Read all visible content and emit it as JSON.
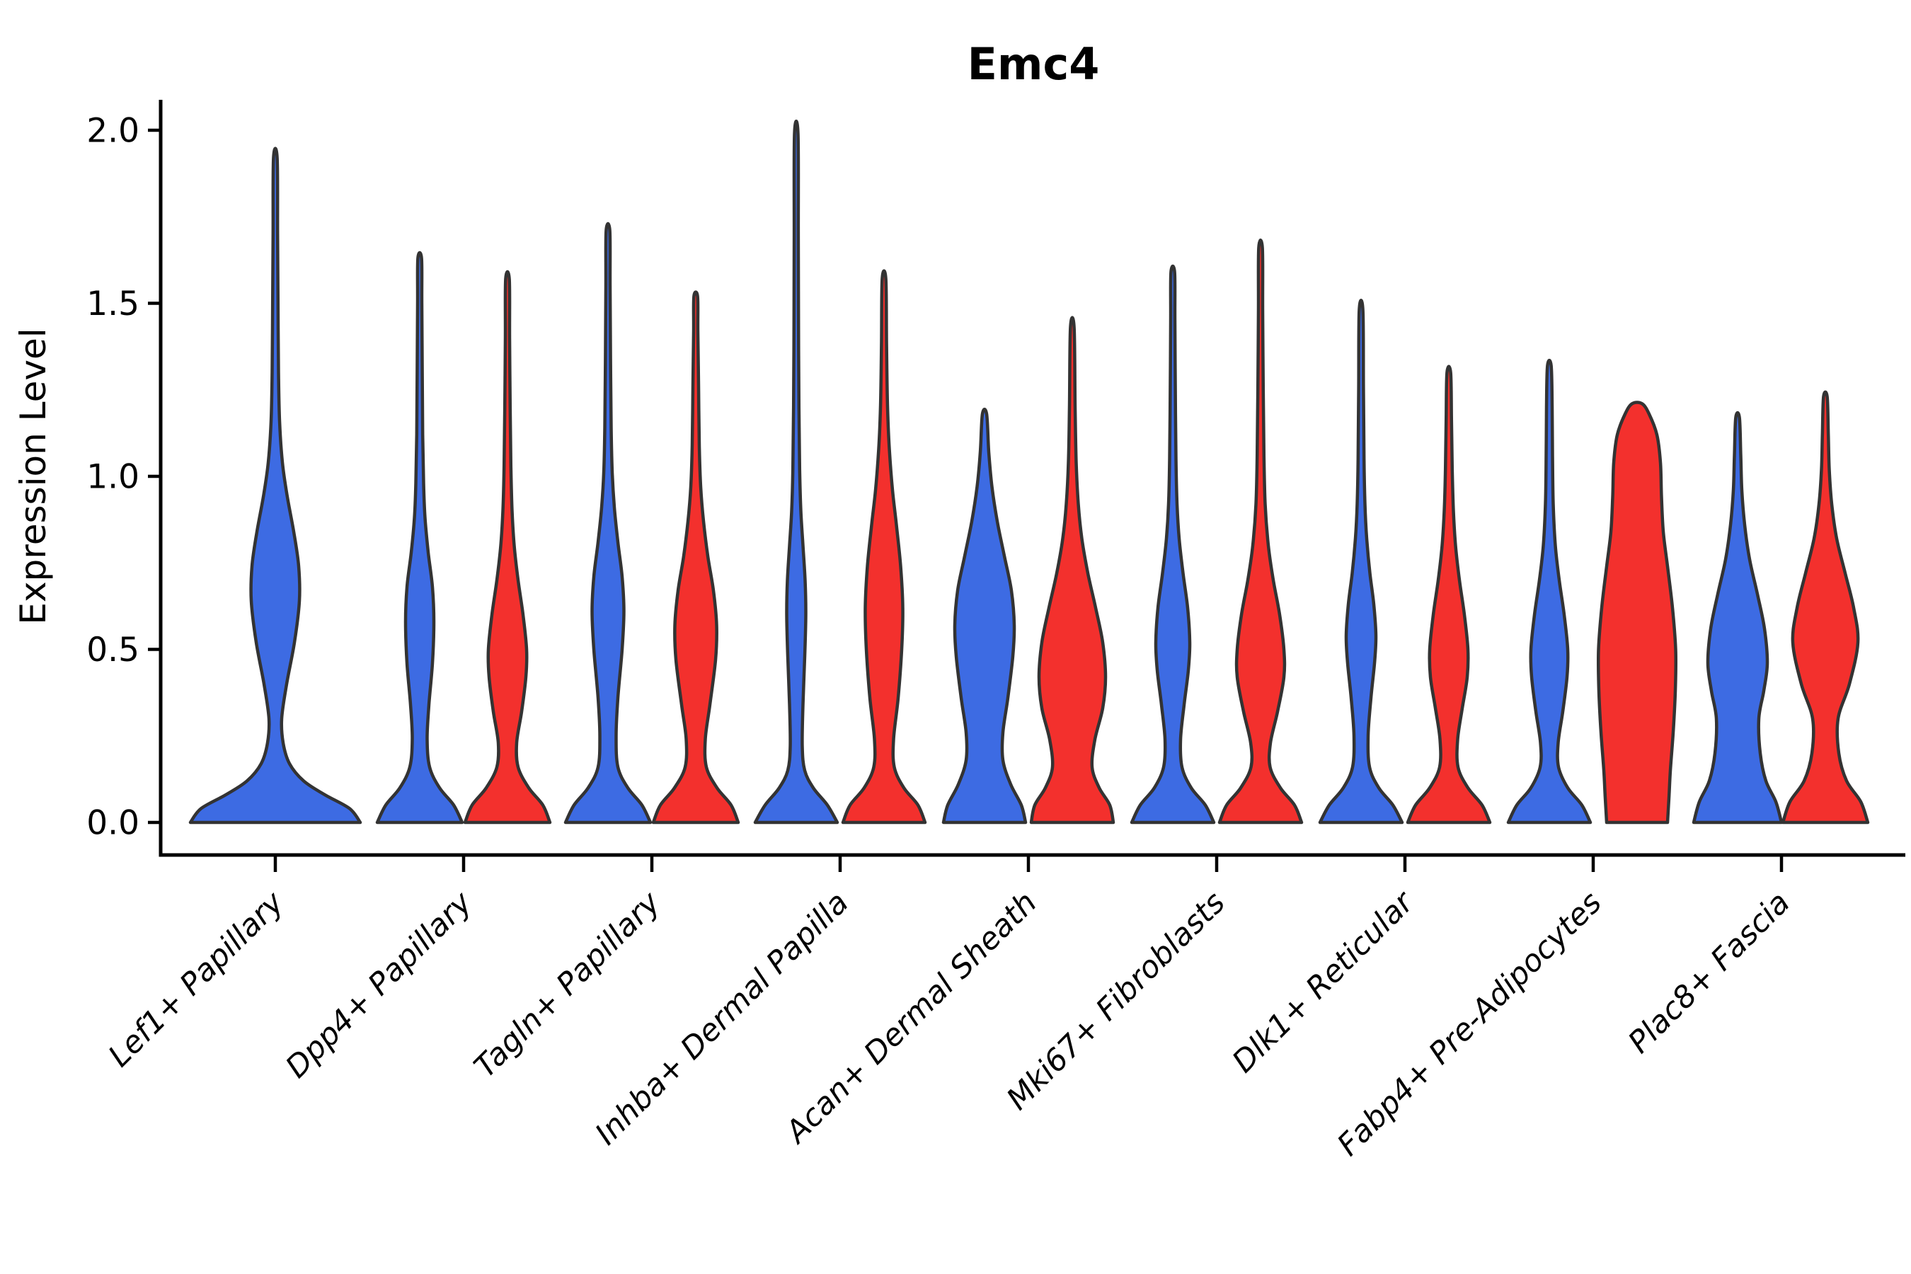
{
  "chart_data": {
    "type": "violin",
    "title": "Emc4",
    "xlabel": "",
    "ylabel": "Expression Level",
    "ylim": [
      0,
      2.05
    ],
    "yticks": {
      "values": [
        0,
        0.5,
        1.0,
        1.5,
        2.0
      ],
      "labels": [
        "0.0",
        "0.5",
        "1.0",
        "1.5",
        "2.0"
      ]
    },
    "grid": false,
    "legend_position": "none",
    "xtick_style": "italic, rotated 45deg, anchored right",
    "categories": [
      {
        "id": "lef1-papillary",
        "label": "Lef1+ Papillary"
      },
      {
        "id": "dpp4-papillary",
        "label": "Dpp4+ Papillary"
      },
      {
        "id": "tagln-papillary",
        "label": "Tagln+ Papillary"
      },
      {
        "id": "inhba-dermal-papilla",
        "label": "Inhba+ Dermal Papilla"
      },
      {
        "id": "acan-dermal-sheath",
        "label": "Acan+ Dermal Sheath"
      },
      {
        "id": "mki67-fibroblasts",
        "label": "Mki67+ Fibroblasts"
      },
      {
        "id": "dlk1-reticular",
        "label": "Dlk1+ Reticular"
      },
      {
        "id": "fabp4-pre-adipocytes",
        "label": "Fabp4+ Pre-Adipocytes"
      },
      {
        "id": "plac8-fascia",
        "label": "Plac8+ Fascia"
      }
    ],
    "series": [
      {
        "id": "blue",
        "color": "#3D6BE3"
      },
      {
        "id": "red",
        "color": "#F3302D"
      }
    ],
    "edge_color": "#333333",
    "axis_color": "#000000",
    "violins": [
      {
        "category": 0,
        "series": "blue",
        "position": "center",
        "max": 1.92,
        "profile": [
          [
            0,
            120
          ],
          [
            0.04,
            105
          ],
          [
            0.08,
            70
          ],
          [
            0.12,
            40
          ],
          [
            0.17,
            20
          ],
          [
            0.23,
            11
          ],
          [
            0.3,
            9
          ],
          [
            0.4,
            16
          ],
          [
            0.52,
            27
          ],
          [
            0.64,
            34
          ],
          [
            0.74,
            33
          ],
          [
            0.84,
            26
          ],
          [
            0.94,
            17
          ],
          [
            1.04,
            10
          ],
          [
            1.16,
            6
          ],
          [
            1.3,
            4.5
          ],
          [
            1.5,
            3.8
          ],
          [
            1.7,
            3.2
          ],
          [
            1.92,
            2.6
          ]
        ]
      },
      {
        "category": 1,
        "series": "blue",
        "position": "left",
        "max": 1.63,
        "profile": [
          [
            0,
            60
          ],
          [
            0.05,
            48
          ],
          [
            0.1,
            28
          ],
          [
            0.16,
            14
          ],
          [
            0.24,
            10.5
          ],
          [
            0.34,
            13
          ],
          [
            0.46,
            18
          ],
          [
            0.58,
            20
          ],
          [
            0.68,
            18
          ],
          [
            0.78,
            12
          ],
          [
            0.88,
            7.5
          ],
          [
            0.98,
            5.5
          ],
          [
            1.12,
            4.2
          ],
          [
            1.3,
            3.6
          ],
          [
            1.5,
            3
          ],
          [
            1.63,
            2.6
          ]
        ]
      },
      {
        "category": 1,
        "series": "red",
        "position": "right",
        "max": 1.57,
        "profile": [
          [
            0,
            60
          ],
          [
            0.05,
            50
          ],
          [
            0.1,
            30
          ],
          [
            0.16,
            15
          ],
          [
            0.23,
            13
          ],
          [
            0.32,
            20
          ],
          [
            0.42,
            26
          ],
          [
            0.5,
            27
          ],
          [
            0.6,
            22
          ],
          [
            0.7,
            15
          ],
          [
            0.8,
            9.5
          ],
          [
            0.9,
            6.5
          ],
          [
            1.03,
            4.8
          ],
          [
            1.2,
            3.8
          ],
          [
            1.4,
            3
          ],
          [
            1.57,
            2.6
          ]
        ]
      },
      {
        "category": 2,
        "series": "blue",
        "position": "left",
        "max": 1.71,
        "profile": [
          [
            0,
            60
          ],
          [
            0.05,
            48
          ],
          [
            0.1,
            28
          ],
          [
            0.16,
            14
          ],
          [
            0.25,
            11.5
          ],
          [
            0.36,
            14
          ],
          [
            0.5,
            20
          ],
          [
            0.61,
            22.5
          ],
          [
            0.71,
            20
          ],
          [
            0.81,
            14
          ],
          [
            0.91,
            9
          ],
          [
            1.01,
            6
          ],
          [
            1.14,
            4.5
          ],
          [
            1.34,
            3.6
          ],
          [
            1.55,
            3
          ],
          [
            1.71,
            2.6
          ]
        ]
      },
      {
        "category": 2,
        "series": "red",
        "position": "right",
        "max": 1.52,
        "profile": [
          [
            0,
            60
          ],
          [
            0.05,
            50
          ],
          [
            0.1,
            30
          ],
          [
            0.16,
            15
          ],
          [
            0.24,
            13.5
          ],
          [
            0.34,
            20
          ],
          [
            0.47,
            28
          ],
          [
            0.57,
            29.5
          ],
          [
            0.67,
            25
          ],
          [
            0.77,
            17
          ],
          [
            0.87,
            11
          ],
          [
            0.97,
            7
          ],
          [
            1.09,
            5
          ],
          [
            1.26,
            4
          ],
          [
            1.42,
            3
          ],
          [
            1.52,
            2.6
          ]
        ]
      },
      {
        "category": 3,
        "series": "blue",
        "position": "left",
        "max": 1.99,
        "profile": [
          [
            0,
            58
          ],
          [
            0.05,
            44
          ],
          [
            0.1,
            24
          ],
          [
            0.15,
            12
          ],
          [
            0.22,
            8.5
          ],
          [
            0.34,
            9.5
          ],
          [
            0.48,
            12
          ],
          [
            0.6,
            13.5
          ],
          [
            0.7,
            12.5
          ],
          [
            0.8,
            9.5
          ],
          [
            0.9,
            6.5
          ],
          [
            1.02,
            4.8
          ],
          [
            1.2,
            3.8
          ],
          [
            1.45,
            3.2
          ],
          [
            1.7,
            2.9
          ],
          [
            1.99,
            2.5
          ]
        ]
      },
      {
        "category": 3,
        "series": "red",
        "position": "right",
        "max": 1.57,
        "profile": [
          [
            0,
            58
          ],
          [
            0.05,
            48
          ],
          [
            0.1,
            28
          ],
          [
            0.16,
            14.5
          ],
          [
            0.24,
            13.5
          ],
          [
            0.36,
            20
          ],
          [
            0.5,
            25
          ],
          [
            0.62,
            26.5
          ],
          [
            0.74,
            23.5
          ],
          [
            0.86,
            17.5
          ],
          [
            0.96,
            12
          ],
          [
            1.08,
            7.5
          ],
          [
            1.2,
            5
          ],
          [
            1.38,
            3.6
          ],
          [
            1.57,
            2.6
          ]
        ]
      },
      {
        "category": 4,
        "series": "blue",
        "position": "left",
        "max": 1.18,
        "profile": [
          [
            0,
            58
          ],
          [
            0.05,
            52
          ],
          [
            0.11,
            37
          ],
          [
            0.18,
            26
          ],
          [
            0.26,
            26
          ],
          [
            0.36,
            33
          ],
          [
            0.48,
            40
          ],
          [
            0.57,
            42
          ],
          [
            0.67,
            38
          ],
          [
            0.77,
            28
          ],
          [
            0.87,
            18
          ],
          [
            0.97,
            10.5
          ],
          [
            1.07,
            6
          ],
          [
            1.18,
            3
          ]
        ]
      },
      {
        "category": 4,
        "series": "red",
        "position": "right",
        "max": 1.43,
        "profile": [
          [
            0,
            58
          ],
          [
            0.05,
            53
          ],
          [
            0.1,
            38
          ],
          [
            0.16,
            28
          ],
          [
            0.24,
            32
          ],
          [
            0.33,
            43
          ],
          [
            0.42,
            47
          ],
          [
            0.52,
            43
          ],
          [
            0.62,
            33
          ],
          [
            0.72,
            22
          ],
          [
            0.82,
            13.5
          ],
          [
            0.92,
            8.5
          ],
          [
            1.04,
            5.5
          ],
          [
            1.2,
            4
          ],
          [
            1.43,
            2.6
          ]
        ]
      },
      {
        "category": 5,
        "series": "blue",
        "position": "left",
        "max": 1.59,
        "profile": [
          [
            0,
            58
          ],
          [
            0.05,
            46
          ],
          [
            0.1,
            26
          ],
          [
            0.16,
            13
          ],
          [
            0.24,
            11
          ],
          [
            0.34,
            16
          ],
          [
            0.44,
            22
          ],
          [
            0.52,
            24
          ],
          [
            0.62,
            21
          ],
          [
            0.72,
            14.5
          ],
          [
            0.82,
            9
          ],
          [
            0.92,
            6
          ],
          [
            1.05,
            4.5
          ],
          [
            1.25,
            3.6
          ],
          [
            1.45,
            3
          ],
          [
            1.59,
            2.6
          ]
        ]
      },
      {
        "category": 5,
        "series": "red",
        "position": "right",
        "max": 1.66,
        "profile": [
          [
            0,
            58
          ],
          [
            0.05,
            48
          ],
          [
            0.1,
            28
          ],
          [
            0.16,
            13.5
          ],
          [
            0.23,
            14
          ],
          [
            0.32,
            24
          ],
          [
            0.42,
            33
          ],
          [
            0.5,
            33
          ],
          [
            0.6,
            27
          ],
          [
            0.7,
            18
          ],
          [
            0.8,
            11
          ],
          [
            0.92,
            6.5
          ],
          [
            1.06,
            4.8
          ],
          [
            1.25,
            3.8
          ],
          [
            1.48,
            3
          ],
          [
            1.66,
            2.6
          ]
        ]
      },
      {
        "category": 6,
        "series": "blue",
        "position": "left",
        "max": 1.48,
        "profile": [
          [
            0,
            58
          ],
          [
            0.05,
            45
          ],
          [
            0.1,
            25
          ],
          [
            0.16,
            12
          ],
          [
            0.25,
            10
          ],
          [
            0.36,
            14
          ],
          [
            0.46,
            19
          ],
          [
            0.54,
            21
          ],
          [
            0.63,
            18
          ],
          [
            0.72,
            12.5
          ],
          [
            0.82,
            8
          ],
          [
            0.92,
            5.5
          ],
          [
            1.05,
            4.2
          ],
          [
            1.25,
            3.4
          ],
          [
            1.48,
            2.6
          ]
        ]
      },
      {
        "category": 6,
        "series": "red",
        "position": "right",
        "max": 1.3,
        "profile": [
          [
            0,
            58
          ],
          [
            0.05,
            47
          ],
          [
            0.1,
            27
          ],
          [
            0.16,
            13
          ],
          [
            0.24,
            12.5
          ],
          [
            0.33,
            19
          ],
          [
            0.42,
            26
          ],
          [
            0.5,
            27
          ],
          [
            0.6,
            22
          ],
          [
            0.7,
            15
          ],
          [
            0.8,
            9.5
          ],
          [
            0.9,
            6.5
          ],
          [
            1.02,
            4.8
          ],
          [
            1.16,
            3.8
          ],
          [
            1.3,
            2.6
          ]
        ]
      },
      {
        "category": 7,
        "series": "blue",
        "position": "left",
        "max": 1.32,
        "profile": [
          [
            0,
            58
          ],
          [
            0.05,
            46
          ],
          [
            0.1,
            26
          ],
          [
            0.16,
            13
          ],
          [
            0.23,
            12.5
          ],
          [
            0.32,
            19
          ],
          [
            0.42,
            25
          ],
          [
            0.5,
            26
          ],
          [
            0.6,
            21
          ],
          [
            0.7,
            14
          ],
          [
            0.8,
            8.5
          ],
          [
            0.92,
            5.5
          ],
          [
            1.06,
            4.5
          ],
          [
            1.2,
            4
          ],
          [
            1.32,
            2.6
          ]
        ]
      },
      {
        "category": 7,
        "series": "red",
        "position": "right",
        "max": 1.21,
        "profile": [
          [
            0,
            43
          ],
          [
            0.07,
            45
          ],
          [
            0.15,
            47
          ],
          [
            0.26,
            51
          ],
          [
            0.38,
            54
          ],
          [
            0.5,
            54.5
          ],
          [
            0.62,
            50
          ],
          [
            0.74,
            43
          ],
          [
            0.84,
            37
          ],
          [
            0.94,
            34.5
          ],
          [
            1.04,
            33
          ],
          [
            1.12,
            28
          ],
          [
            1.18,
            17
          ],
          [
            1.21,
            7
          ]
        ]
      },
      {
        "category": 8,
        "series": "blue",
        "position": "left",
        "max": 1.17,
        "profile": [
          [
            0,
            62
          ],
          [
            0.06,
            54
          ],
          [
            0.12,
            40
          ],
          [
            0.2,
            32
          ],
          [
            0.3,
            30
          ],
          [
            0.38,
            37
          ],
          [
            0.46,
            42
          ],
          [
            0.56,
            38
          ],
          [
            0.66,
            28
          ],
          [
            0.76,
            17
          ],
          [
            0.86,
            10
          ],
          [
            0.96,
            6
          ],
          [
            1.06,
            4.5
          ],
          [
            1.17,
            2.6
          ]
        ]
      },
      {
        "category": 8,
        "series": "red",
        "position": "right",
        "max": 1.23,
        "profile": [
          [
            0,
            60
          ],
          [
            0.06,
            50
          ],
          [
            0.12,
            30
          ],
          [
            0.2,
            19
          ],
          [
            0.3,
            18
          ],
          [
            0.4,
            34
          ],
          [
            0.52,
            46
          ],
          [
            0.62,
            40
          ],
          [
            0.72,
            28
          ],
          [
            0.82,
            16
          ],
          [
            0.92,
            9
          ],
          [
            1.02,
            5.5
          ],
          [
            1.12,
            4.2
          ],
          [
            1.23,
            2.6
          ]
        ]
      }
    ]
  }
}
